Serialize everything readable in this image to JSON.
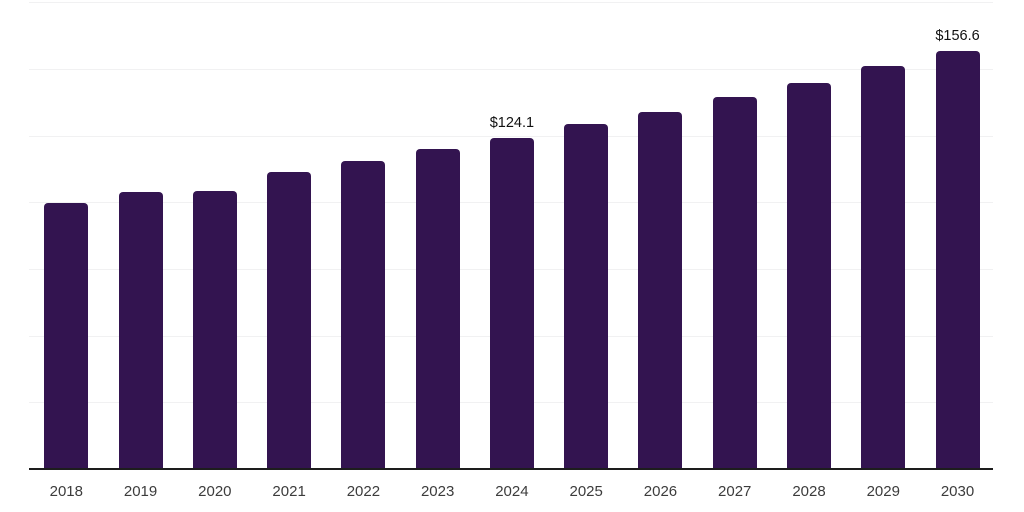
{
  "chart_data": {
    "type": "bar",
    "title": "",
    "xlabel": "",
    "ylabel": "",
    "categories": [
      "2018",
      "2019",
      "2020",
      "2021",
      "2022",
      "2023",
      "2024",
      "2025",
      "2026",
      "2027",
      "2028",
      "2029",
      "2030"
    ],
    "values": [
      99.6,
      103.8,
      104.1,
      111.5,
      115.5,
      119.8,
      124.1,
      129.3,
      134.0,
      139.6,
      144.7,
      151.1,
      156.6
    ],
    "annotations": [
      {
        "category": "2024",
        "text": "$124.1"
      },
      {
        "category": "2030",
        "text": "$156.6"
      }
    ],
    "ylim": [
      0,
      175
    ],
    "gridline_step": 25,
    "grid": "horizontal-only",
    "y_tick_labels": "none",
    "legend": "none",
    "colors": {
      "bar_fill": "#331450",
      "axis_line": "#1d1d1d",
      "gridline": "#f1f1f2",
      "annotation_text": "#111111",
      "tick_label_text": "#3c3c3c",
      "background": "#ffffff"
    }
  }
}
